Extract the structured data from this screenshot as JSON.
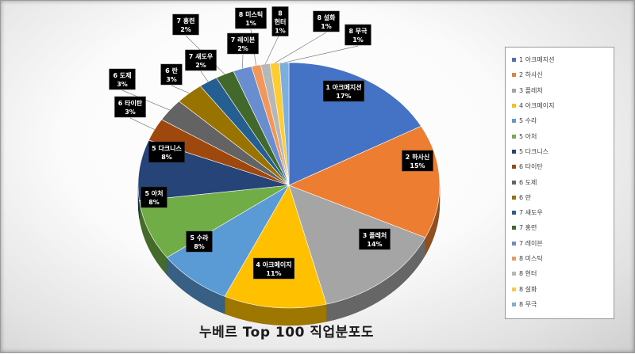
{
  "chart_data": {
    "type": "pie",
    "title": "누베르 Top 100 직업분포도",
    "style": "3d",
    "legend_position": "right",
    "slices": [
      {
        "label": "1 아크메지션",
        "legend": "1 아크매지션",
        "value": 17,
        "text": "17%",
        "color": "#4472c4"
      },
      {
        "label": "2 하사신",
        "legend": "2 하사신",
        "value": 15,
        "text": "15%",
        "color": "#ed7d31"
      },
      {
        "label": "3 플레처",
        "legend": "3 플레처",
        "value": 14,
        "text": "14%",
        "color": "#a5a5a5"
      },
      {
        "label": "4 아크메이지",
        "legend": "4 아크메이지",
        "value": 11,
        "text": "11%",
        "color": "#ffc000"
      },
      {
        "label": "5 수라",
        "legend": "5 수라",
        "value": 8,
        "text": "8%",
        "color": "#5b9bd5"
      },
      {
        "label": "5 아처",
        "legend": "5 아처",
        "value": 8,
        "text": "8%",
        "color": "#70ad47"
      },
      {
        "label": "5 다크니스",
        "legend": "5 다크니스",
        "value": 8,
        "text": "8%",
        "color": "#264478"
      },
      {
        "label": "6 타이탄",
        "legend": "6 타이탄",
        "value": 3,
        "text": "3%",
        "color": "#9e480e"
      },
      {
        "label": "6 도제",
        "legend": "6 도제",
        "value": 3,
        "text": "3%",
        "color": "#636363"
      },
      {
        "label": "6 란",
        "legend": "6 란",
        "value": 3,
        "text": "3%",
        "color": "#997300"
      },
      {
        "label": "7 섀도우",
        "legend": "7 섀도우",
        "value": 2,
        "text": "2%",
        "color": "#255e91"
      },
      {
        "label": "7 홍련",
        "legend": "7 홍련",
        "value": 2,
        "text": "2%",
        "color": "#43682b"
      },
      {
        "label": "7 레이븐",
        "legend": "7 레이븐",
        "value": 2,
        "text": "2%",
        "color": "#698ed0"
      },
      {
        "label": "8 미스틱",
        "legend": "8 미스틱",
        "value": 1,
        "text": "1%",
        "color": "#f1975a"
      },
      {
        "label": "8 헌터",
        "legend": "8 헌터",
        "value": 1,
        "text": "1%",
        "color": "#b7b7b7"
      },
      {
        "label": "8 설화",
        "legend": "8 설화",
        "value": 1,
        "text": "1%",
        "color": "#ffcd33"
      },
      {
        "label": "8 무극",
        "legend": "8 무극",
        "value": 1,
        "text": "1%",
        "color": "#7cafdd"
      }
    ]
  }
}
